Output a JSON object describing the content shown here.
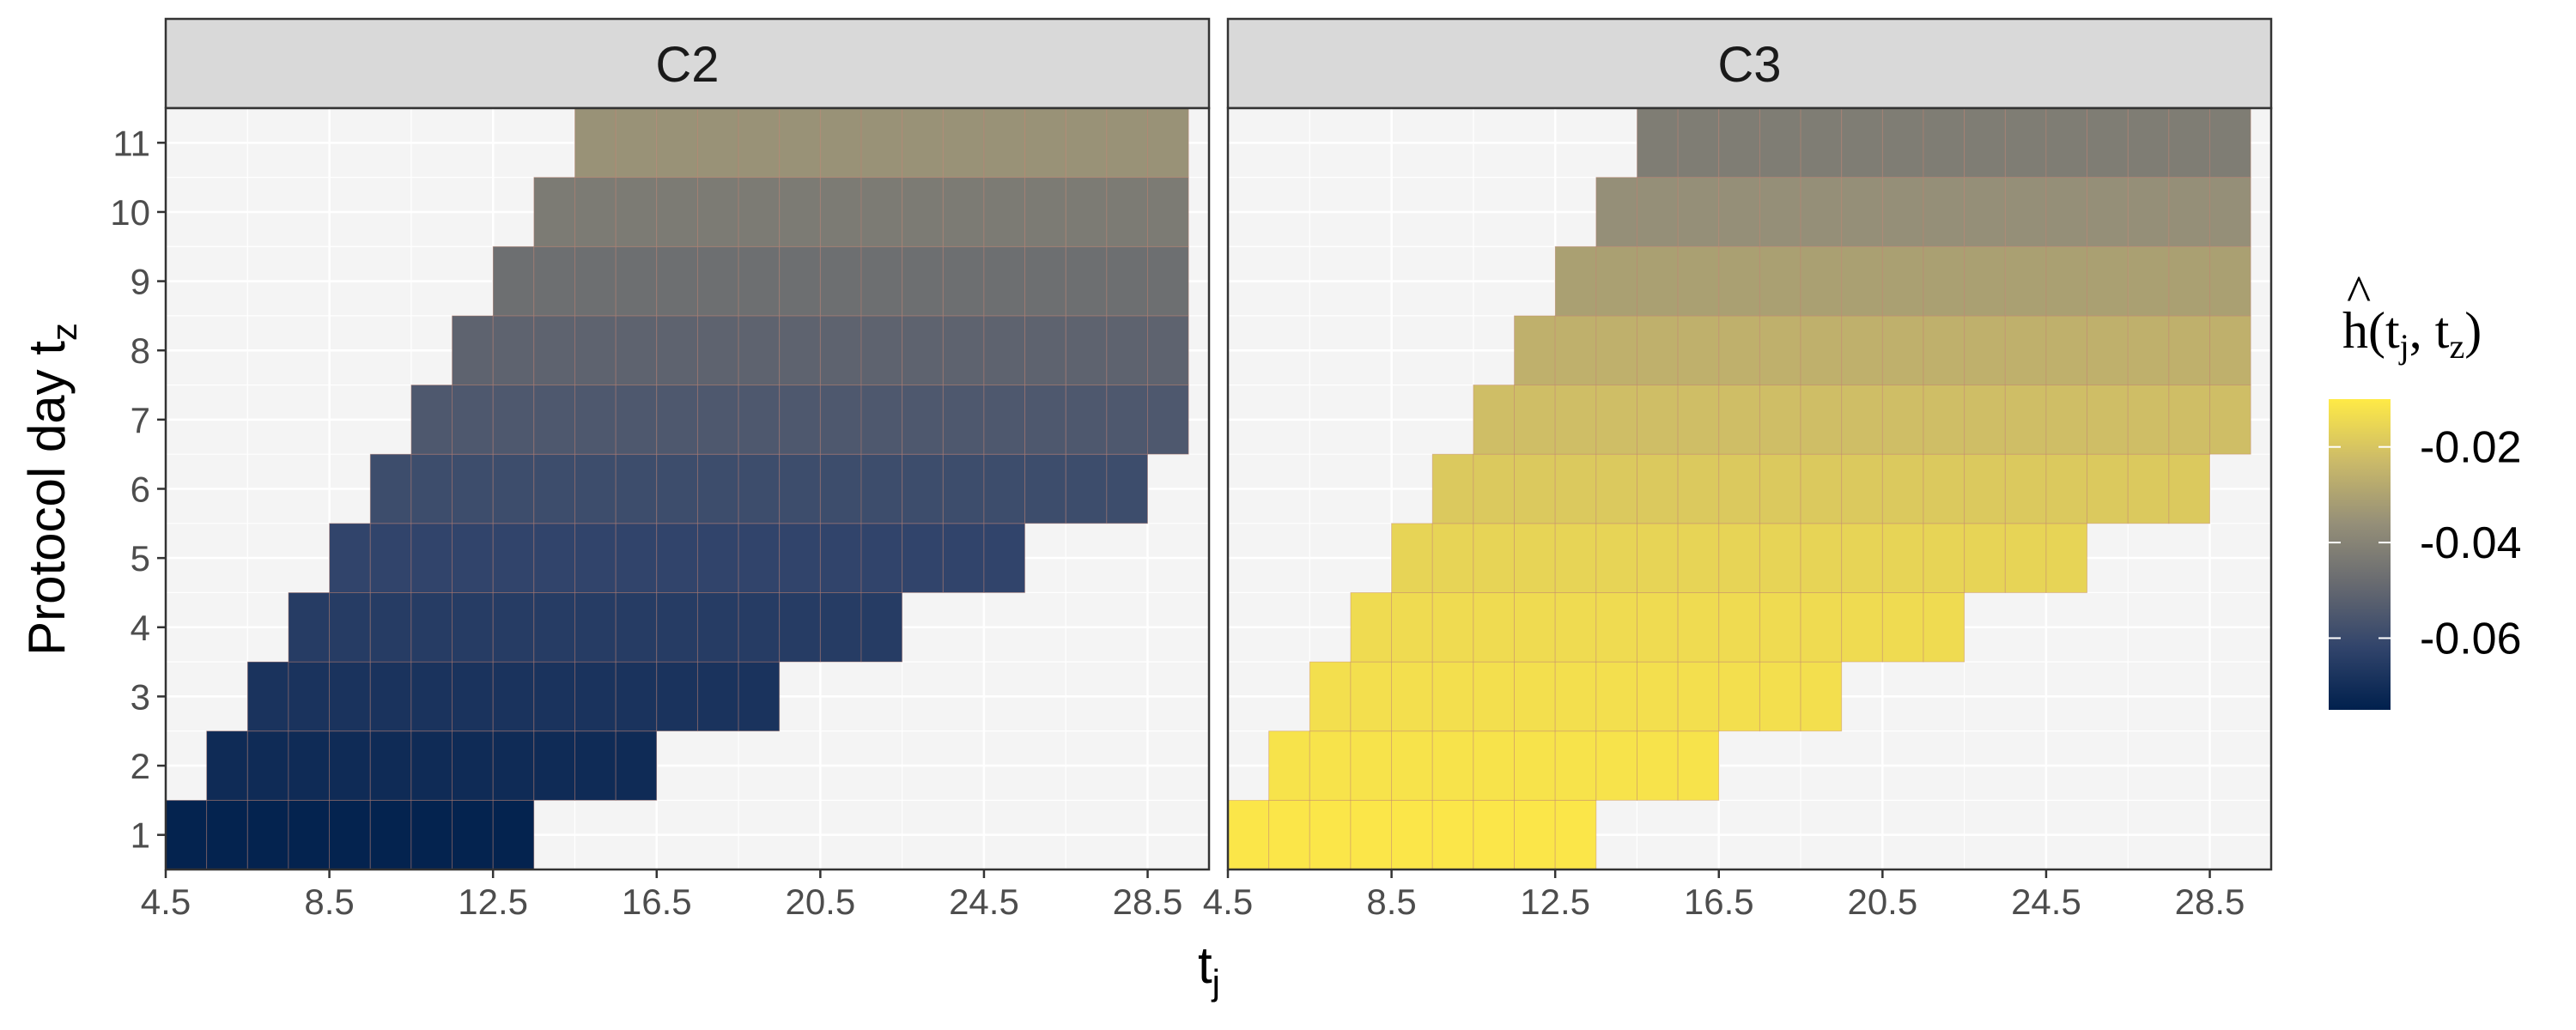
{
  "chart_data": {
    "type": "heatmap",
    "facets": [
      "C2",
      "C3"
    ],
    "xlabel": "t",
    "xlabel_sub": "j",
    "ylabel": "Protocol day  t",
    "ylabel_sub": "z",
    "x_ticks": [
      "4.5",
      "8.5",
      "12.5",
      "16.5",
      "20.5",
      "24.5",
      "28.5"
    ],
    "y_ticks": [
      "1",
      "2",
      "3",
      "4",
      "5",
      "6",
      "7",
      "8",
      "9",
      "10",
      "11"
    ],
    "xlim": [
      4.5,
      30
    ],
    "ylim": [
      0.5,
      11.5
    ],
    "cell_width": 1,
    "grid": true,
    "legend": {
      "position": "right",
      "title_main": "h",
      "title_hat": "^",
      "title_open": "(",
      "title_t1": "t",
      "title_s1": "j",
      "title_sep": ", ",
      "title_t2": "t",
      "title_s2": "z",
      "title_close": ")",
      "min": -0.075,
      "max": -0.01,
      "ticks": [
        -0.02,
        -0.04,
        -0.06
      ],
      "tick_labels": [
        "-0.02",
        "-0.04",
        "-0.06"
      ],
      "colors": [
        "#00204d",
        "#31446b",
        "#666970",
        "#958f78",
        "#cbba69",
        "#ffea46"
      ]
    },
    "rows": [
      {
        "tz": 1,
        "x_from": 5,
        "x_to": 13
      },
      {
        "tz": 2,
        "x_from": 6,
        "x_to": 16
      },
      {
        "tz": 3,
        "x_from": 7,
        "x_to": 19
      },
      {
        "tz": 4,
        "x_from": 8,
        "x_to": 22
      },
      {
        "tz": 5,
        "x_from": 9,
        "x_to": 25
      },
      {
        "tz": 6,
        "x_from": 10,
        "x_to": 28
      },
      {
        "tz": 7,
        "x_from": 11,
        "x_to": 29.5
      },
      {
        "tz": 8,
        "x_from": 12,
        "x_to": 29.5
      },
      {
        "tz": 9,
        "x_from": 13,
        "x_to": 29.5
      },
      {
        "tz": 10,
        "x_from": 14,
        "x_to": 29.5
      },
      {
        "tz": 11,
        "x_from": 15,
        "x_to": 29.5
      }
    ],
    "values": {
      "C2": [
        -0.074,
        -0.071,
        -0.068,
        -0.065,
        -0.062,
        -0.059,
        -0.055,
        -0.051,
        -0.047,
        -0.043,
        -0.035
      ],
      "C3": [
        -0.011,
        -0.012,
        -0.013,
        -0.014,
        -0.016,
        -0.019,
        -0.022,
        -0.026,
        -0.031,
        -0.036,
        -0.042
      ]
    }
  }
}
